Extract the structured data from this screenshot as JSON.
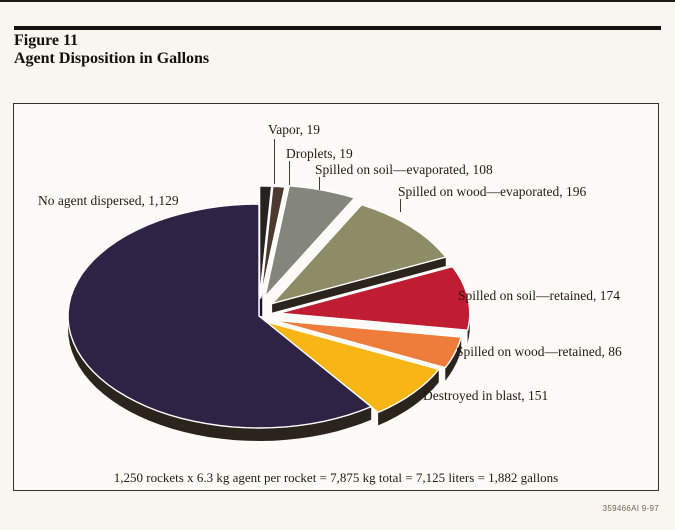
{
  "page": {
    "figure_label": "Figure 11",
    "title": "Agent Disposition in Gallons",
    "footnote": "1,250 rockets x 6.3 kg agent per rocket = 7,875 kg total = 7,125 liters = 1,882 gallons",
    "corner_id": "359466AI 9-97"
  },
  "chart_data": {
    "type": "pie",
    "title": "Agent Disposition in Gallons",
    "unit": "gallons",
    "total": 1882,
    "style": "3d-exploded-ellipse",
    "legend_position": "callout-labels",
    "slices": [
      {
        "label": "Vapor",
        "value": 19,
        "display": "Vapor, 19",
        "color": "#26221f"
      },
      {
        "label": "Droplets",
        "value": 19,
        "display": "Droplets, 19",
        "color": "#4c3930"
      },
      {
        "label": "Spilled on soil—evaporated",
        "value": 108,
        "display": "Spilled on soil—evaporated, 108",
        "color": "#85867b"
      },
      {
        "label": "Spilled on wood—evaporated",
        "value": 196,
        "display": "Spilled on wood—evaporated, 196",
        "color": "#8e8c67"
      },
      {
        "label": "Spilled on soil—retained",
        "value": 174,
        "display": "Spilled on soil—retained, 174",
        "color": "#c01d33"
      },
      {
        "label": "Spilled on wood—retained",
        "value": 86,
        "display": "Spilled on wood—retained, 86",
        "color": "#ee7d3c"
      },
      {
        "label": "Destroyed in blast",
        "value": 151,
        "display": "Destroyed in blast, 151",
        "color": "#f8b616"
      },
      {
        "label": "No agent dispersed",
        "value": 1129,
        "display": "No agent dispersed,  1,129",
        "color": "#2e2245"
      }
    ]
  }
}
